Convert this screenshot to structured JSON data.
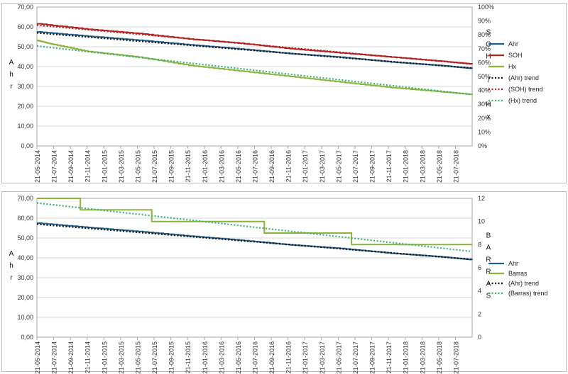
{
  "chart_data": [
    {
      "type": "line",
      "x_axis": {
        "tick_labels": [
          "21-05-2014",
          "21-07-2014",
          "21-09-2014",
          "21-11-2014",
          "21-01-2015",
          "21-03-2015",
          "21-05-2015",
          "21-07-2015",
          "21-09-2015",
          "21-11-2015",
          "21-01-2016",
          "21-03-2016",
          "21-05-2016",
          "21-07-2016",
          "21-09-2016",
          "21-11-2016",
          "21-01-2017",
          "21-03-2017",
          "21-05-2017",
          "21-07-2017",
          "21-09-2017",
          "21-11-2017",
          "21-01-2018",
          "21-03-2018",
          "21-05-2018",
          "21-07-2018"
        ],
        "range": [
          "2014-05-21",
          "2018-09-10"
        ]
      },
      "y_left": {
        "label": "Ahr",
        "ticks": [
          "0,00",
          "10,00",
          "20,00",
          "30,00",
          "40,00",
          "50,00",
          "60,00",
          "70,00"
        ],
        "range": [
          0,
          70
        ]
      },
      "y_right": {
        "label": "SOH / Hx",
        "ticks": [
          "0%",
          "10%",
          "20%",
          "30%",
          "40%",
          "50%",
          "60%",
          "70%",
          "80%",
          "90%",
          "100%"
        ],
        "range": [
          0,
          100
        ]
      },
      "grid": "horizontal",
      "legend_position": "right",
      "series": [
        {
          "name": "Ahr",
          "axis": "left",
          "style": "solid",
          "color": "#1f5f8b",
          "x": [
            "2014-05-21",
            "2014-11-21",
            "2015-05-21",
            "2015-11-21",
            "2016-05-21",
            "2016-11-21",
            "2017-05-21",
            "2017-11-21",
            "2018-05-21",
            "2018-09-10"
          ],
          "y": [
            57.5,
            55.3,
            53.3,
            51.0,
            48.9,
            46.5,
            44.7,
            42.3,
            40.5,
            39.0
          ]
        },
        {
          "name": "SOH",
          "axis": "right",
          "style": "solid",
          "color": "#b22222",
          "x": [
            "2014-05-21",
            "2014-11-21",
            "2015-05-21",
            "2015-11-21",
            "2016-05-21",
            "2016-11-21",
            "2017-05-21",
            "2017-11-21",
            "2018-05-21",
            "2018-09-10"
          ],
          "y": [
            88,
            84,
            81,
            77,
            74,
            70,
            67,
            64,
            61,
            59
          ]
        },
        {
          "name": "Hx",
          "axis": "right",
          "style": "solid",
          "color": "#8db33f",
          "x": [
            "2014-05-21",
            "2014-07-21",
            "2014-11-21",
            "2015-05-21",
            "2015-11-21",
            "2016-05-21",
            "2016-11-21",
            "2017-05-21",
            "2017-11-21",
            "2018-05-21",
            "2018-09-10"
          ],
          "y": [
            76,
            73,
            68,
            64,
            58,
            54,
            50,
            46,
            42,
            39,
            37
          ]
        },
        {
          "name": "(Ahr) trend",
          "axis": "left",
          "style": "dotted",
          "color": "#111111",
          "x": [
            "2014-05-21",
            "2018-09-10"
          ],
          "y": [
            57.0,
            39.2
          ]
        },
        {
          "name": "(SOH) trend",
          "axis": "right",
          "style": "dotted",
          "color": "#b22222",
          "x": [
            "2014-05-21",
            "2018-09-10"
          ],
          "y": [
            87,
            59
          ]
        },
        {
          "name": "(Hx) trend",
          "axis": "right",
          "style": "dotted",
          "color": "#3cb371",
          "x": [
            "2014-05-21",
            "2018-09-10"
          ],
          "y": [
            72,
            37
          ]
        }
      ]
    },
    {
      "type": "line",
      "x_axis": {
        "tick_labels": [
          "21-05-2014",
          "21-07-2014",
          "21-09-2014",
          "21-11-2014",
          "21-01-2015",
          "21-03-2015",
          "21-05-2015",
          "21-07-2015",
          "21-09-2015",
          "21-11-2015",
          "21-01-2016",
          "21-03-2016",
          "21-05-2016",
          "21-07-2016",
          "21-09-2016",
          "21-11-2016",
          "21-01-2017",
          "21-03-2017",
          "21-05-2017",
          "21-07-2017",
          "21-09-2017",
          "21-11-2017",
          "21-01-2018",
          "21-03-2018",
          "21-05-2018",
          "21-07-2018"
        ],
        "range": [
          "2014-05-21",
          "2018-09-10"
        ]
      },
      "y_left": {
        "label": "Ahr",
        "ticks": [
          "0,00",
          "10,00",
          "20,00",
          "30,00",
          "40,00",
          "50,00",
          "60,00",
          "70,00"
        ],
        "range": [
          0,
          70
        ]
      },
      "y_right": {
        "label": "BARRAS",
        "ticks": [
          "0",
          "2",
          "4",
          "6",
          "8",
          "10",
          "12"
        ],
        "range": [
          0,
          12
        ]
      },
      "grid": "horizontal",
      "legend_position": "right",
      "series": [
        {
          "name": "Ahr",
          "axis": "left",
          "style": "solid",
          "color": "#1f5f8b",
          "x": [
            "2014-05-21",
            "2014-11-21",
            "2015-05-21",
            "2015-11-21",
            "2016-05-21",
            "2016-11-21",
            "2017-05-21",
            "2017-11-21",
            "2018-05-21",
            "2018-09-10"
          ],
          "y": [
            57.5,
            55.3,
            53.3,
            51.0,
            48.9,
            46.5,
            44.7,
            42.3,
            40.5,
            39.0
          ]
        },
        {
          "name": "Barras",
          "axis": "right",
          "style": "step",
          "color": "#8db33f",
          "x": [
            "2014-05-21",
            "2014-10-25",
            "2014-10-25",
            "2015-07-10",
            "2015-07-10",
            "2016-08-20",
            "2016-08-20",
            "2017-07-01",
            "2017-07-01",
            "2018-09-10"
          ],
          "y": [
            12,
            12,
            11,
            11,
            10,
            10,
            9,
            9,
            8,
            8
          ]
        },
        {
          "name": "(Ahr) trend",
          "axis": "left",
          "style": "dotted",
          "color": "#111111",
          "x": [
            "2014-05-21",
            "2018-09-10"
          ],
          "y": [
            57.0,
            39.2
          ]
        },
        {
          "name": "(Barras) trend",
          "axis": "right",
          "style": "dotted",
          "color": "#3cb371",
          "x": [
            "2014-05-21",
            "2018-09-10"
          ],
          "y": [
            11.6,
            7.4
          ]
        }
      ]
    }
  ]
}
